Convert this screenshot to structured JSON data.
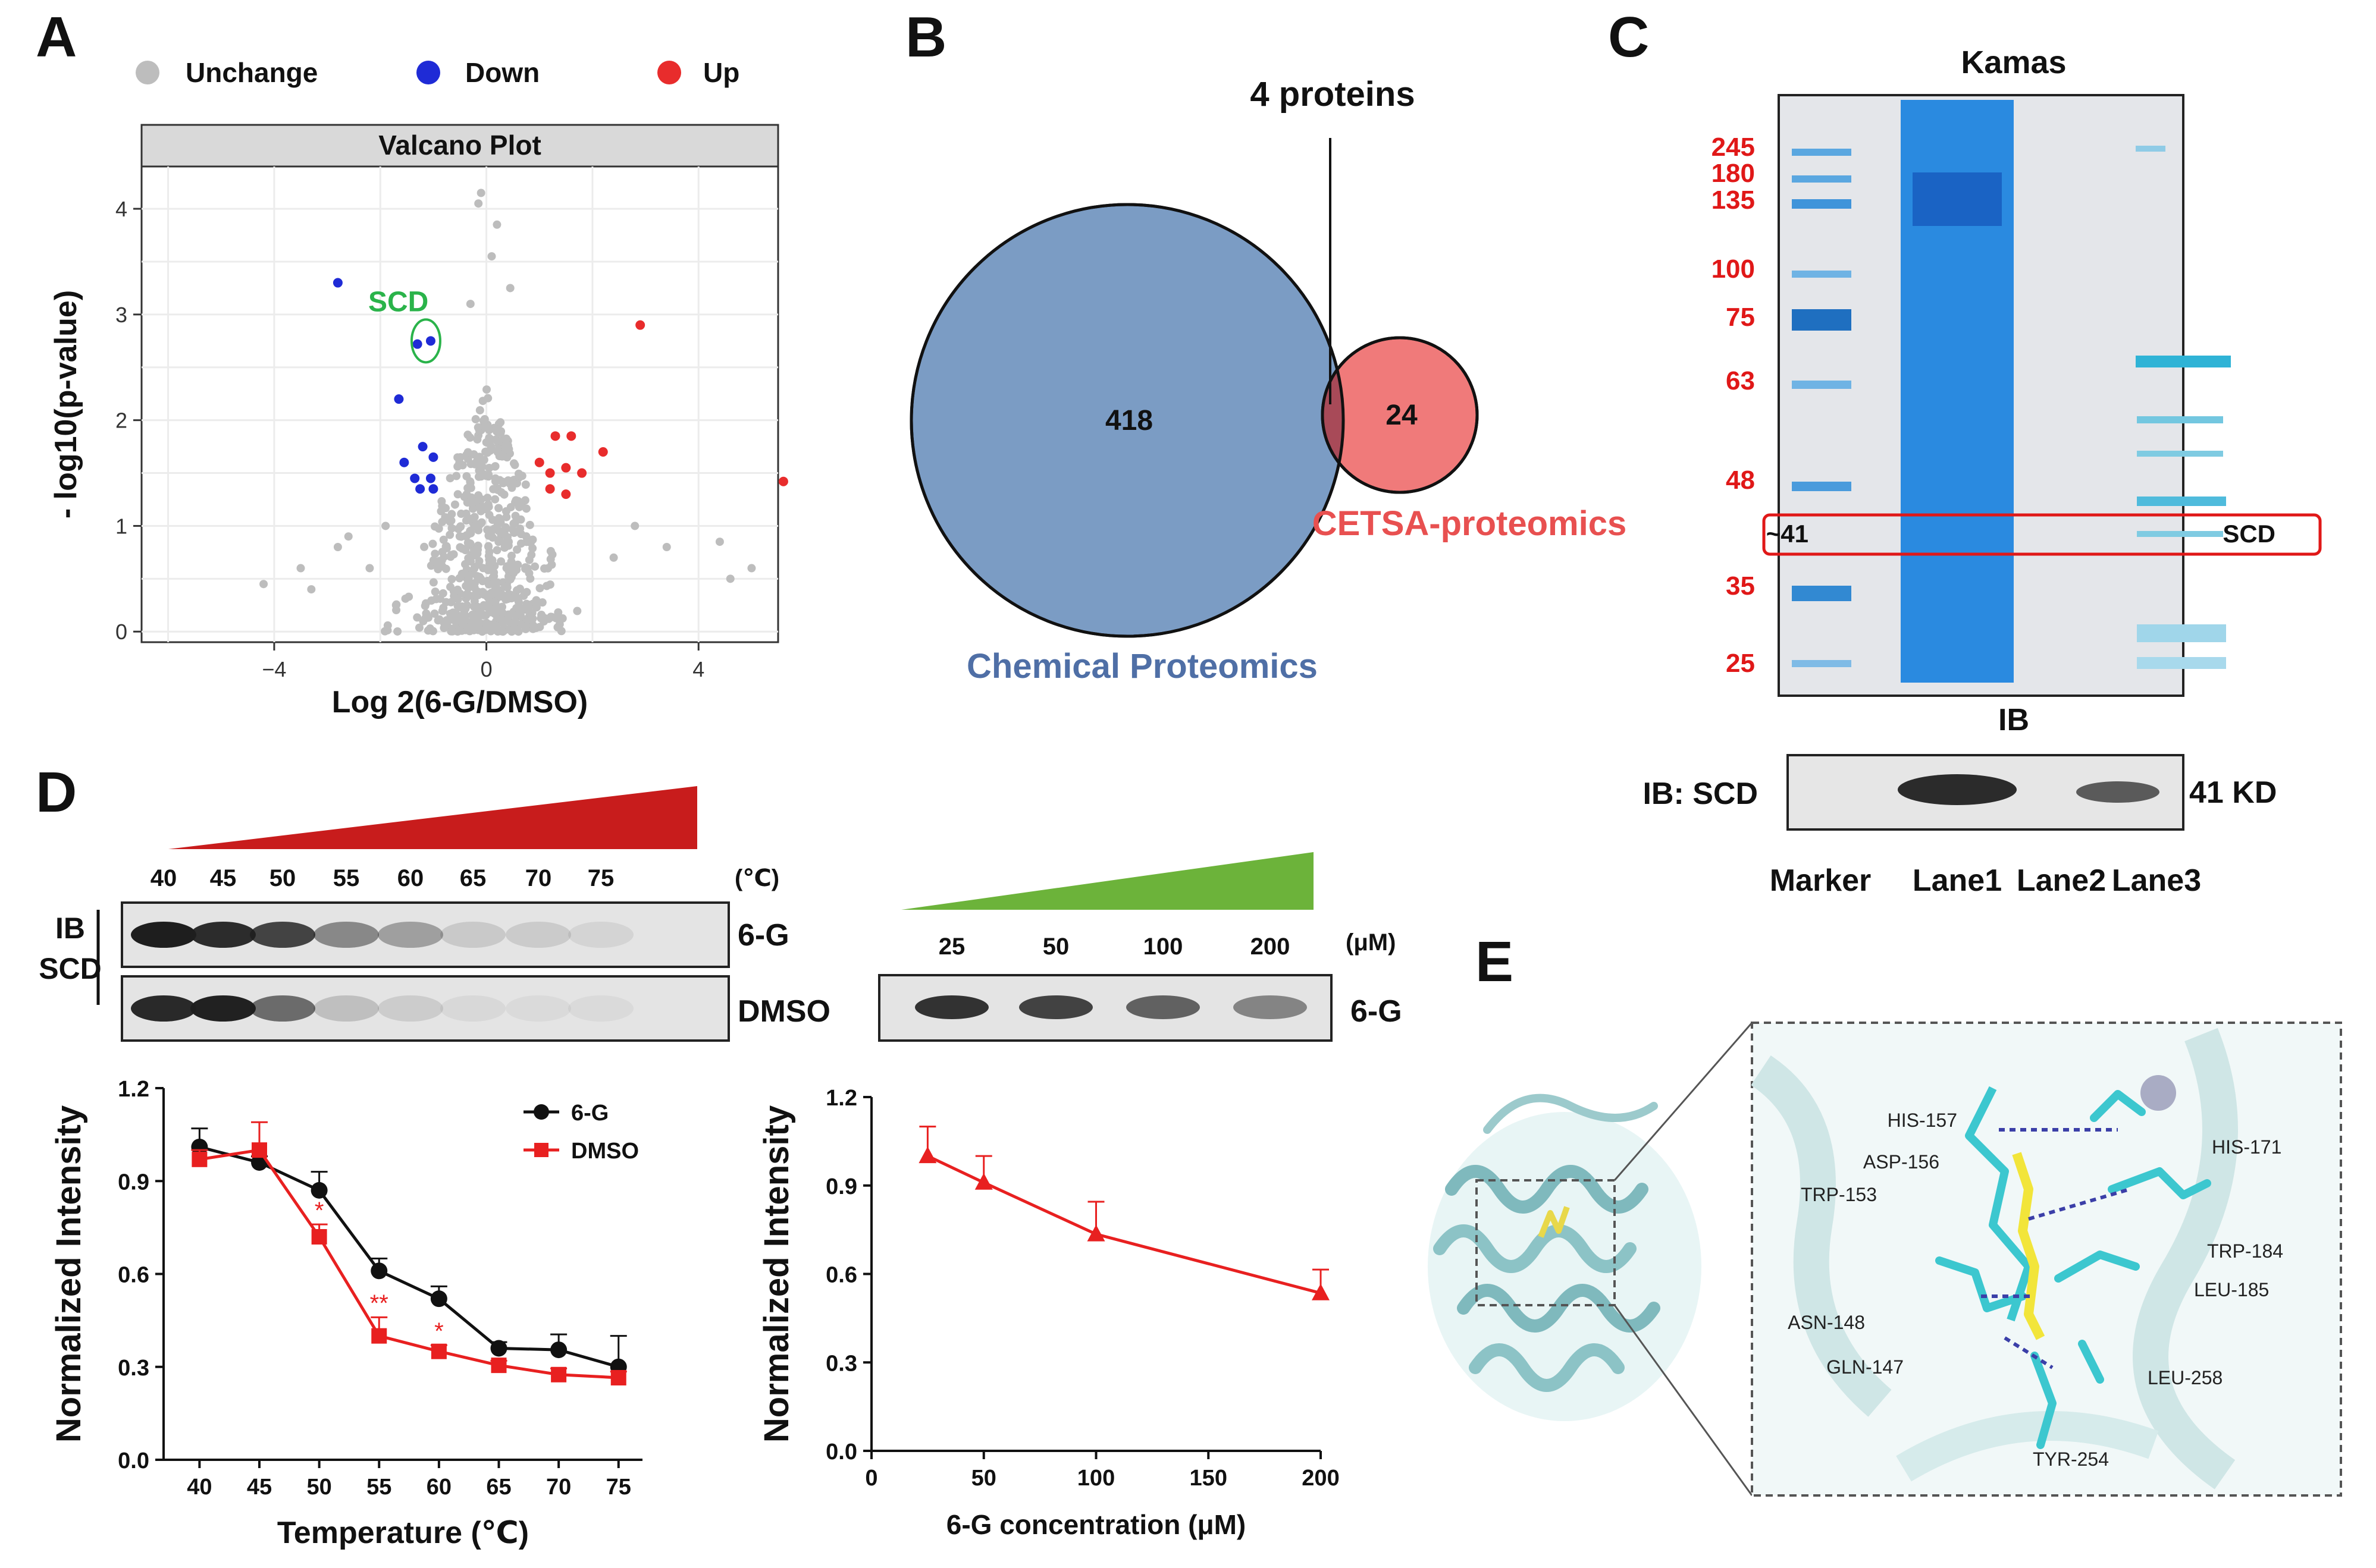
{
  "panels": {
    "A": "A",
    "B": "B",
    "C": "C",
    "D": "D",
    "E": "E"
  },
  "colors": {
    "unchange": "#bdbdbd",
    "down": "#1f2bd6",
    "up": "#e82c2c",
    "scd": "#2ab34a",
    "venn_chem": "#7b9cc4",
    "venn_cetsa": "#f07a7a",
    "venn_overlap": "#a84a58",
    "gel_blue": "#1f7ad6",
    "red_text": "#e01818",
    "wedge_red": "#c81c1c",
    "wedge_green": "#6cb33a"
  },
  "volcano": {
    "title": "Valcano Plot",
    "xlabel": "Log 2(6-G/DMSO)",
    "ylabel": "- log10(p-value)",
    "legend": {
      "unchange": "Unchange",
      "down": "Down",
      "up": "Up"
    },
    "scd_label": "SCD",
    "xlim": [
      -6.5,
      5.5
    ],
    "ylim": [
      -0.1,
      4.4
    ],
    "xticks": [
      -4,
      0,
      4
    ],
    "yticks": [
      0,
      1,
      2,
      3,
      4
    ],
    "xticklabels": [
      "−4",
      "0",
      "4"
    ],
    "yticklabels": [
      "0",
      "1",
      "2",
      "3",
      "4"
    ],
    "down_points": [
      [
        -2.8,
        3.3
      ],
      [
        -1.3,
        2.72
      ],
      [
        -1.05,
        2.75
      ],
      [
        -1.65,
        2.2
      ],
      [
        -1.2,
        1.75
      ],
      [
        -1.55,
        1.6
      ],
      [
        -1.0,
        1.65
      ],
      [
        -1.35,
        1.45
      ],
      [
        -1.05,
        1.45
      ],
      [
        -1.25,
        1.35
      ],
      [
        -1.0,
        1.35
      ]
    ],
    "up_points": [
      [
        2.9,
        2.9
      ],
      [
        1.3,
        1.85
      ],
      [
        1.6,
        1.85
      ],
      [
        2.2,
        1.7
      ],
      [
        1.0,
        1.6
      ],
      [
        1.5,
        1.55
      ],
      [
        1.2,
        1.5
      ],
      [
        1.8,
        1.5
      ],
      [
        1.2,
        1.35
      ],
      [
        1.5,
        1.3
      ],
      [
        5.6,
        1.42
      ]
    ],
    "scd_point": [
      -1.05,
      2.75
    ]
  },
  "venn": {
    "chem_count": "418",
    "cetsa_count": "24",
    "overlap_label": "4 proteins",
    "chem_label": "Chemical Proteomics",
    "cetsa_label": "CETSA-proteomics"
  },
  "gel": {
    "title": "Kamas",
    "mw_labels": [
      "245",
      "180",
      "135",
      "100",
      "75",
      "63",
      "48",
      "~41",
      "35",
      "25"
    ],
    "band_label": "SCD",
    "ib_title": "IB",
    "ib_label": "IB: SCD",
    "ib_kd": "41 KD",
    "lanes": [
      "Marker",
      "Lane1",
      "Lane2",
      "Lane3"
    ]
  },
  "thermal": {
    "ib_label_1": "IB",
    "ib_label_2": "SCD",
    "temps": [
      "40",
      "45",
      "50",
      "55",
      "60",
      "65",
      "70",
      "75"
    ],
    "unit": "(℃)",
    "row1": "6-G",
    "row2": "DMSO"
  },
  "dose_blot": {
    "concs": [
      "25",
      "50",
      "100",
      "200"
    ],
    "unit": "(μM)",
    "row": "6-G"
  },
  "chart_data": [
    {
      "type": "scatter",
      "title": "Valcano Plot",
      "xlabel": "Log 2(6-G/DMSO)",
      "ylabel": "- log10(p-value)",
      "series": [
        {
          "name": "Down",
          "points": [
            [
              -2.8,
              3.3
            ],
            [
              -1.3,
              2.72
            ],
            [
              -1.05,
              2.75
            ],
            [
              -1.65,
              2.2
            ],
            [
              -1.2,
              1.75
            ],
            [
              -1.55,
              1.6
            ],
            [
              -1.0,
              1.65
            ],
            [
              -1.35,
              1.45
            ],
            [
              -1.05,
              1.45
            ],
            [
              -1.25,
              1.35
            ],
            [
              -1.0,
              1.35
            ]
          ]
        },
        {
          "name": "Up",
          "points": [
            [
              2.9,
              2.9
            ],
            [
              1.3,
              1.85
            ],
            [
              1.6,
              1.85
            ],
            [
              2.2,
              1.7
            ],
            [
              1.0,
              1.6
            ],
            [
              1.5,
              1.55
            ],
            [
              1.2,
              1.5
            ],
            [
              1.8,
              1.5
            ],
            [
              1.2,
              1.35
            ],
            [
              1.5,
              1.3
            ],
            [
              5.6,
              1.42
            ]
          ]
        }
      ]
    },
    {
      "type": "line",
      "title": "",
      "xlabel": "Temperature (℃)",
      "ylabel": "Normalized Intensity",
      "x": [
        40,
        45,
        50,
        55,
        60,
        65,
        70,
        75
      ],
      "xlim": [
        37,
        77
      ],
      "ylim": [
        0,
        1.2
      ],
      "xticks": [
        40,
        45,
        50,
        55,
        60,
        65,
        70,
        75
      ],
      "yticks": [
        0.0,
        0.3,
        0.6,
        0.9,
        1.2
      ],
      "yticklabels": [
        "0.0",
        "0.3",
        "0.6",
        "0.9",
        "1.2"
      ],
      "series": [
        {
          "name": "6-G",
          "values": [
            1.01,
            0.96,
            0.87,
            0.61,
            0.52,
            0.36,
            0.355,
            0.3
          ],
          "errors": [
            0.06,
            0.02,
            0.06,
            0.04,
            0.04,
            0.02,
            0.05,
            0.1
          ]
        },
        {
          "name": "DMSO",
          "values": [
            0.97,
            1.0,
            0.72,
            0.4,
            0.35,
            0.305,
            0.275,
            0.265
          ],
          "errors": [
            0.03,
            0.09,
            0.04,
            0.06,
            0.02,
            0.015,
            0.02,
            0.02
          ]
        }
      ],
      "annotations": [
        {
          "x": 50,
          "y": 0.78,
          "text": "*"
        },
        {
          "x": 55,
          "y": 0.48,
          "text": "**"
        },
        {
          "x": 60,
          "y": 0.39,
          "text": "*"
        }
      ]
    },
    {
      "type": "line",
      "title": "",
      "xlabel": "6-G concentration  (μM)",
      "ylabel": "Normalized Intensity",
      "x": [
        25,
        50,
        100,
        200
      ],
      "xlim": [
        0,
        200
      ],
      "ylim": [
        0,
        1.2
      ],
      "xticks": [
        0,
        50,
        100,
        150,
        200
      ],
      "yticks": [
        0.0,
        0.3,
        0.6,
        0.9,
        1.2
      ],
      "yticklabels": [
        "0.0",
        "0.3",
        "0.6",
        "0.9",
        "1.2"
      ],
      "series": [
        {
          "name": "6-G",
          "values": [
            1.0,
            0.91,
            0.735,
            0.535
          ],
          "errors": [
            0.1,
            0.09,
            0.11,
            0.08
          ]
        }
      ]
    }
  ],
  "docking": {
    "residues": [
      "HIS-157",
      "ASP-156",
      "HIS-171",
      "TRP-153",
      "TRP-184",
      "ASN-148",
      "LEU-185",
      "GLN-147",
      "LEU-258",
      "TYR-254"
    ]
  }
}
